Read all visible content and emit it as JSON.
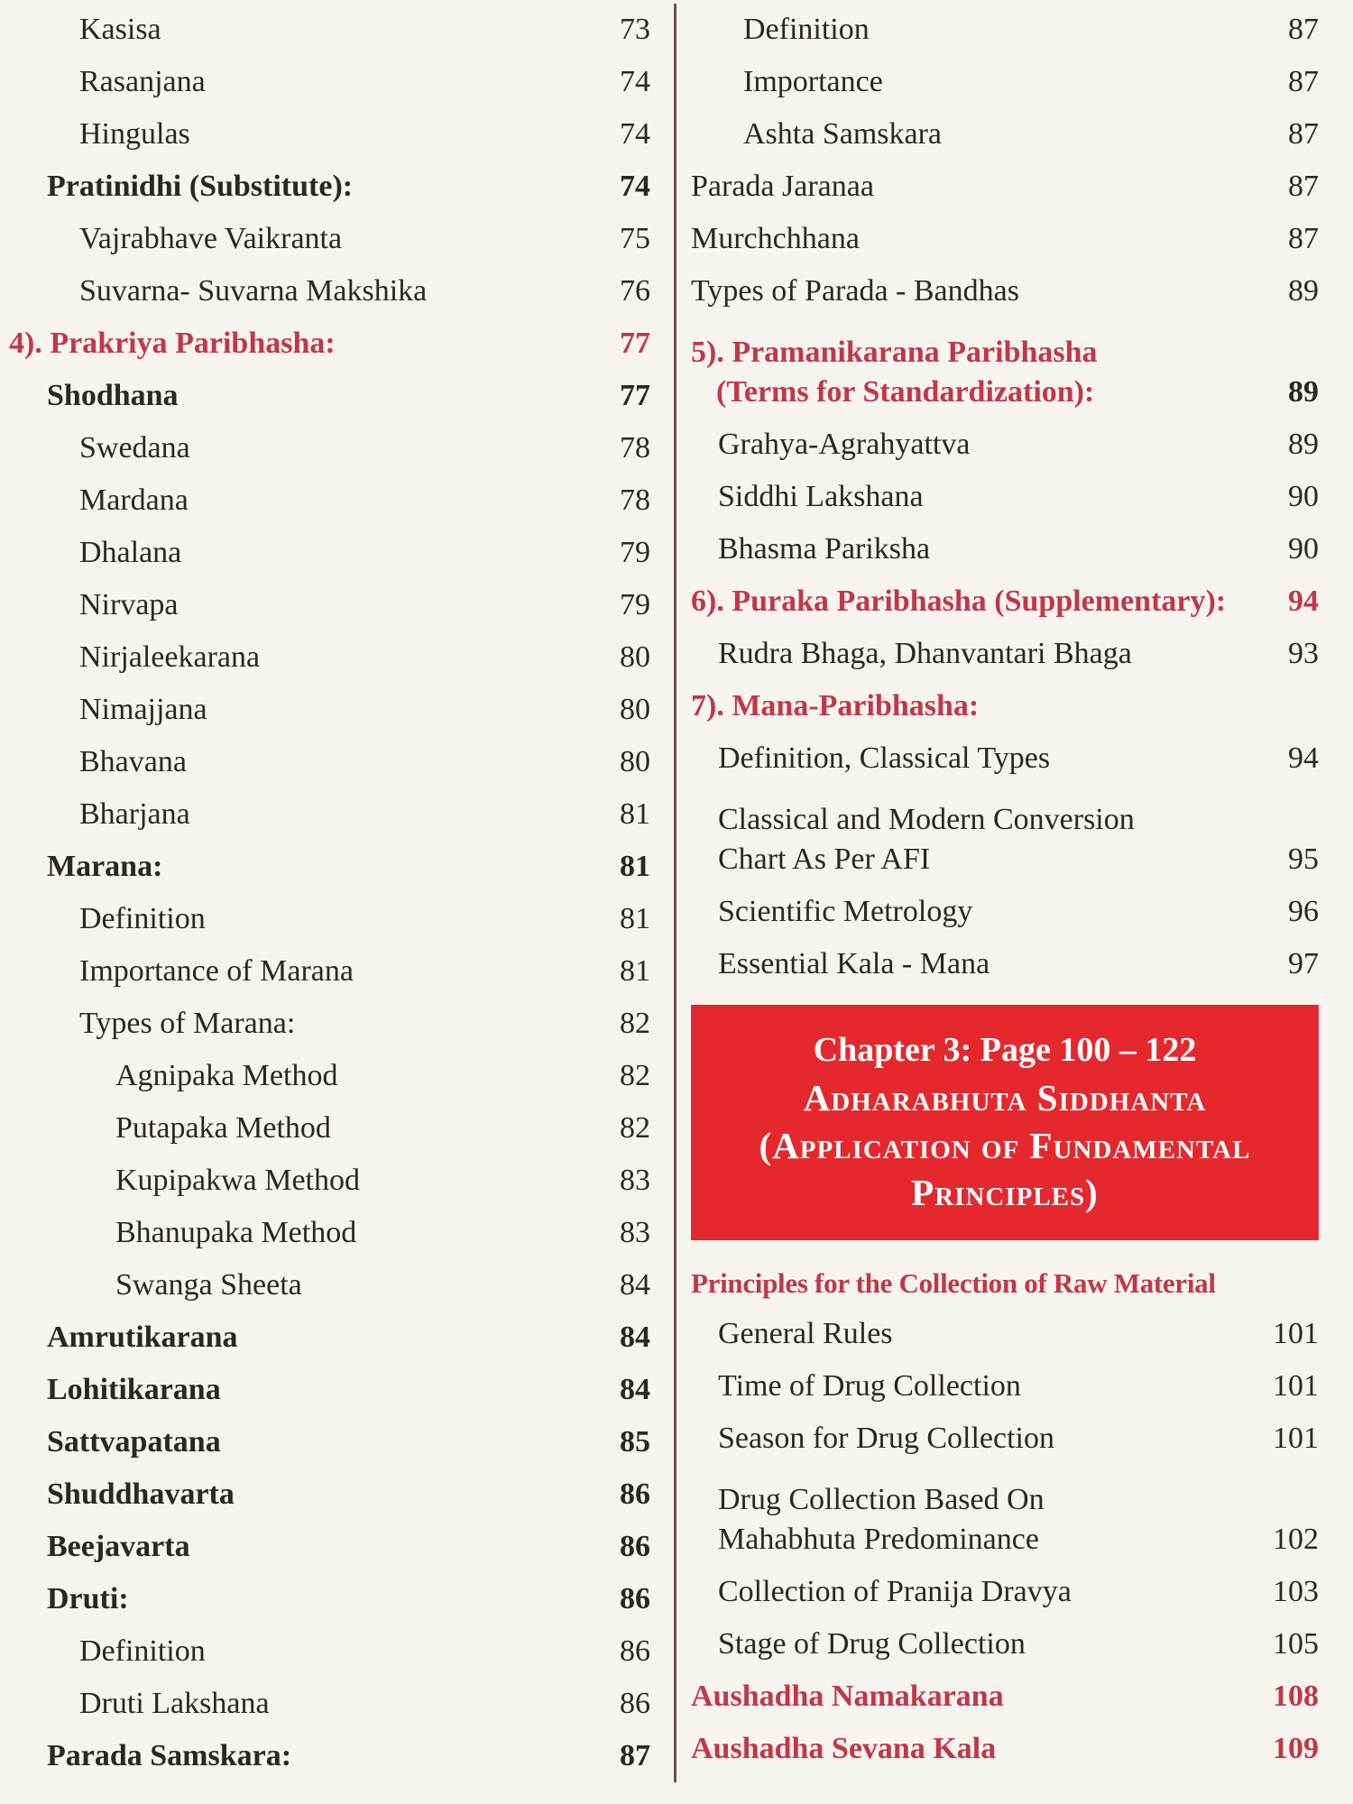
{
  "page": {
    "background": "#f7f4f0",
    "text_color": "#2b2724",
    "red_color": "#c23747",
    "banner_bg": "#e5282d",
    "divider_color": "#6f4b54"
  },
  "left_column": {
    "entries": [
      {
        "lines": [
          "Kasisa"
        ],
        "page": "73",
        "indent": 2
      },
      {
        "lines": [
          "Rasanjana"
        ],
        "page": "74",
        "indent": 2
      },
      {
        "lines": [
          "Hingulas"
        ],
        "page": "74",
        "indent": 2
      },
      {
        "lines": [
          "Pratinidhi (Substitute):"
        ],
        "page": "74",
        "indent": 1,
        "bold": true
      },
      {
        "lines": [
          "Vajrabhave Vaikranta"
        ],
        "page": "75",
        "indent": 2
      },
      {
        "lines": [
          "Suvarna- Suvarna Makshika"
        ],
        "page": "76",
        "indent": 2
      },
      {
        "lines": [
          "4). Prakriya Paribhasha:"
        ],
        "page": "77",
        "indent": 0,
        "bold": true,
        "red": true,
        "page_red": true
      },
      {
        "lines": [
          "Shodhana"
        ],
        "page": "77",
        "indent": 1,
        "bold": true
      },
      {
        "lines": [
          "Swedana"
        ],
        "page": "78",
        "indent": 2
      },
      {
        "lines": [
          "Mardana"
        ],
        "page": "78",
        "indent": 2
      },
      {
        "lines": [
          "Dhalana"
        ],
        "page": "79",
        "indent": 2
      },
      {
        "lines": [
          "Nirvapa"
        ],
        "page": "79",
        "indent": 2
      },
      {
        "lines": [
          "Nirjaleekarana"
        ],
        "page": "80",
        "indent": 2
      },
      {
        "lines": [
          "Nimajjana"
        ],
        "page": "80",
        "indent": 2
      },
      {
        "lines": [
          "Bhavana"
        ],
        "page": "80",
        "indent": 2
      },
      {
        "lines": [
          "Bharjana"
        ],
        "page": "81",
        "indent": 2
      },
      {
        "lines": [
          "Marana:"
        ],
        "page": "81",
        "indent": 1,
        "bold": true
      },
      {
        "lines": [
          "Definition"
        ],
        "page": "81",
        "indent": 2
      },
      {
        "lines": [
          "Importance of Marana"
        ],
        "page": "81",
        "indent": 2
      },
      {
        "lines": [
          "Types of Marana:"
        ],
        "page": "82",
        "indent": 2
      },
      {
        "lines": [
          "Agnipaka Method"
        ],
        "page": "82",
        "indent": 3
      },
      {
        "lines": [
          "Putapaka Method"
        ],
        "page": "82",
        "indent": 3
      },
      {
        "lines": [
          "Kupipakwa Method"
        ],
        "page": "83",
        "indent": 3
      },
      {
        "lines": [
          "Bhanupaka Method"
        ],
        "page": "83",
        "indent": 3
      },
      {
        "lines": [
          "Swanga Sheeta"
        ],
        "page": "84",
        "indent": 3
      },
      {
        "lines": [
          "Amrutikarana"
        ],
        "page": "84",
        "indent": 1,
        "bold": true
      },
      {
        "lines": [
          "Lohitikarana"
        ],
        "page": "84",
        "indent": 1,
        "bold": true
      },
      {
        "lines": [
          "Sattvapatana"
        ],
        "page": "85",
        "indent": 1,
        "bold": true
      },
      {
        "lines": [
          "Shuddhavarta"
        ],
        "page": "86",
        "indent": 1,
        "bold": true
      },
      {
        "lines": [
          "Beejavarta"
        ],
        "page": "86",
        "indent": 1,
        "bold": true
      },
      {
        "lines": [
          "Druti:"
        ],
        "page": "86",
        "indent": 1,
        "bold": true
      },
      {
        "lines": [
          "Definition"
        ],
        "page": "86",
        "indent": 2
      },
      {
        "lines": [
          "Druti Lakshana"
        ],
        "page": "86",
        "indent": 2
      },
      {
        "lines": [
          "Parada Samskara:"
        ],
        "page": "87",
        "indent": 1,
        "bold": true
      }
    ]
  },
  "right_column": {
    "entries_top": [
      {
        "lines": [
          "Definition"
        ],
        "page": "87",
        "indent": 2
      },
      {
        "lines": [
          "Importance"
        ],
        "page": "87",
        "indent": 2
      },
      {
        "lines": [
          "Ashta Samskara"
        ],
        "page": "87",
        "indent": 2
      },
      {
        "lines": [
          "Parada Jaranaa"
        ],
        "page": "87",
        "indent": 0
      },
      {
        "lines": [
          "Murchchhana"
        ],
        "page": "87",
        "indent": 0
      },
      {
        "lines": [
          "Types of Parada - Bandhas"
        ],
        "page": "89",
        "indent": 0
      },
      {
        "lines": [
          "5). Pramanikarana Paribhasha",
          "(Terms for Standardization):"
        ],
        "page": "89",
        "indent": 0,
        "bold": true,
        "red": true,
        "hang": true
      },
      {
        "lines": [
          "Grahya-Agrahyattva"
        ],
        "page": "89",
        "indent": 1
      },
      {
        "lines": [
          "Siddhi Lakshana"
        ],
        "page": "90",
        "indent": 1
      },
      {
        "lines": [
          "Bhasma Pariksha"
        ],
        "page": "90",
        "indent": 1
      },
      {
        "lines": [
          "6). Puraka Paribhasha (Supplementary):"
        ],
        "page": "94",
        "indent": 0,
        "bold": true,
        "red": true,
        "page_red": true
      },
      {
        "lines": [
          "Rudra Bhaga, Dhanvantari Bhaga"
        ],
        "page": "93",
        "indent": 1
      },
      {
        "lines": [
          "7). Mana-Paribhasha:"
        ],
        "page": "",
        "indent": 0,
        "bold": true,
        "red": true
      },
      {
        "lines": [
          "Definition, Classical Types"
        ],
        "page": "94",
        "indent": 1
      },
      {
        "lines": [
          "Classical and Modern Conversion",
          "Chart As Per AFI"
        ],
        "page": "95",
        "indent": 1
      },
      {
        "lines": [
          "Scientific Metrology"
        ],
        "page": "96",
        "indent": 1
      },
      {
        "lines": [
          "Essential Kala - Mana"
        ],
        "page": "97",
        "indent": 1
      }
    ],
    "banner": {
      "line1": "Chapter 3: Page 100 – 122",
      "line2": "Adharabhuta Siddhanta",
      "line3": "(Application of Fundamental",
      "line4": "Principles)"
    },
    "entries_bottom": [
      {
        "lines": [
          "Principles for the Collection of Raw Material"
        ],
        "page": "",
        "indent": 0,
        "bold": true,
        "red": true,
        "fit": true
      },
      {
        "lines": [
          "General Rules"
        ],
        "page": "101",
        "indent": 1
      },
      {
        "lines": [
          "Time of Drug Collection"
        ],
        "page": "101",
        "indent": 1
      },
      {
        "lines": [
          "Season for Drug Collection"
        ],
        "page": "101",
        "indent": 1
      },
      {
        "lines": [
          "Drug Collection Based On",
          "Mahabhuta Predominance"
        ],
        "page": "102",
        "indent": 1
      },
      {
        "lines": [
          "Collection of Pranija Dravya"
        ],
        "page": "103",
        "indent": 1
      },
      {
        "lines": [
          "Stage of Drug Collection"
        ],
        "page": "105",
        "indent": 1
      },
      {
        "lines": [
          "Aushadha Namakarana"
        ],
        "page": "108",
        "indent": 0,
        "bold": true,
        "red": true,
        "page_red": true
      },
      {
        "lines": [
          "Aushadha Sevana Kala"
        ],
        "page": "109",
        "indent": 0,
        "bold": true,
        "red": true,
        "page_red": true
      }
    ]
  }
}
